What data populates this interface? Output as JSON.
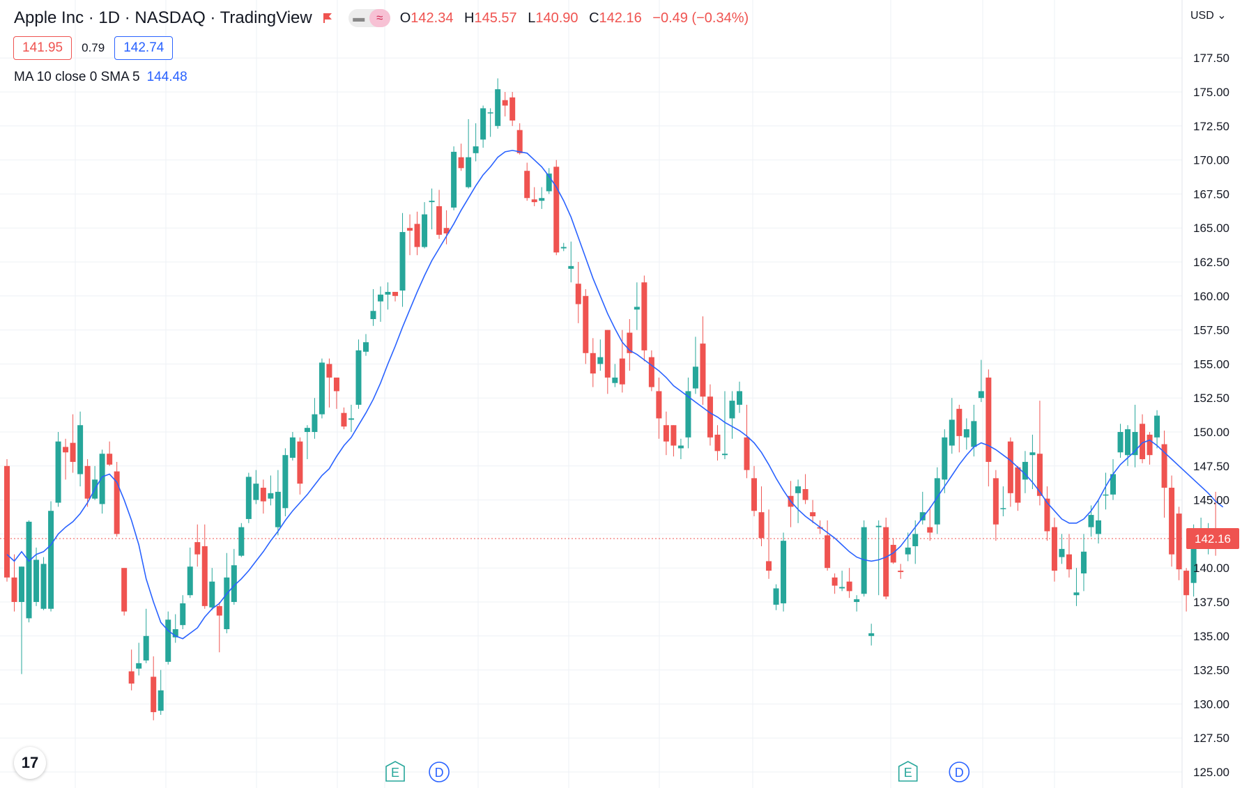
{
  "header": {
    "title": "Apple Inc · 1D · NASDAQ · TradingView",
    "ohlc": [
      {
        "label": "O",
        "value": "142.34"
      },
      {
        "label": "H",
        "value": "145.57"
      },
      {
        "label": "L",
        "value": "140.90"
      },
      {
        "label": "C",
        "value": "142.16"
      }
    ],
    "change": "−0.49 (−0.34%)",
    "bid": "141.95",
    "spread": "0.79",
    "ask": "142.74",
    "indicator_name": "MA 10 close 0 SMA 5",
    "indicator_value": "144.48",
    "currency": "USD",
    "logo_text": "17"
  },
  "colors": {
    "up": "#26a69a",
    "down": "#ef5350",
    "ma": "#2962ff",
    "grid": "#eef1f5",
    "axis_text": "#131722"
  },
  "events": [
    {
      "type": "E",
      "color": "#26a69a",
      "index": 53
    },
    {
      "type": "D",
      "color": "#2962ff",
      "index": 59
    },
    {
      "type": "E",
      "color": "#26a69a",
      "index": 123
    },
    {
      "type": "D",
      "color": "#2962ff",
      "index": 130
    }
  ],
  "chart_data": {
    "type": "candlestick",
    "symbol": "Apple Inc",
    "interval": "1D",
    "exchange": "NASDAQ",
    "ylim": [
      124.5,
      179.5
    ],
    "y_ticks": [
      "125.00",
      "127.50",
      "130.00",
      "132.50",
      "135.00",
      "137.50",
      "140.00",
      "142.50",
      "145.00",
      "147.50",
      "150.00",
      "152.50",
      "155.00",
      "157.50",
      "160.00",
      "162.50",
      "165.00",
      "167.50",
      "170.00",
      "172.50",
      "175.00",
      "177.50"
    ],
    "last_price": "142.16",
    "ma_period": 10,
    "candles": [
      [
        147.5,
        139.3,
        148.0,
        139.0
      ],
      [
        139.3,
        137.5,
        141.0,
        136.8
      ],
      [
        137.5,
        140.1,
        140.1,
        132.2
      ],
      [
        136.3,
        143.4,
        143.5,
        136.0
      ],
      [
        137.5,
        140.6,
        141.5,
        137.2
      ],
      [
        137.0,
        140.3,
        140.8,
        136.9
      ],
      [
        137.0,
        144.2,
        144.9,
        136.8
      ],
      [
        144.8,
        149.3,
        150.0,
        144.5
      ],
      [
        148.9,
        148.5,
        149.5,
        146.5
      ],
      [
        149.2,
        147.8,
        151.3,
        147.0
      ],
      [
        146.9,
        150.5,
        151.5,
        146.0
      ],
      [
        147.5,
        145.1,
        148.0,
        144.5
      ],
      [
        145.1,
        146.5,
        147.5,
        145.0
      ],
      [
        144.7,
        148.4,
        148.7,
        144.0
      ],
      [
        148.4,
        147.6,
        149.3,
        147.5
      ],
      [
        147.1,
        142.5,
        147.8,
        142.3
      ],
      [
        140.0,
        136.8,
        140.0,
        136.5
      ],
      [
        132.4,
        131.5,
        134.0,
        131.0
      ],
      [
        132.6,
        133.0,
        134.5,
        132.1
      ],
      [
        133.2,
        135.0,
        137.0,
        133.0
      ],
      [
        132.0,
        129.4,
        133.5,
        128.8
      ],
      [
        129.5,
        131.0,
        132.5,
        129.2
      ],
      [
        133.1,
        136.2,
        136.8,
        132.9
      ],
      [
        134.9,
        135.5,
        136.6,
        134.5
      ],
      [
        135.8,
        137.4,
        138.0,
        135.5
      ],
      [
        138.0,
        140.1,
        141.5,
        137.8
      ],
      [
        141.9,
        141.0,
        143.2,
        140.1
      ],
      [
        141.6,
        137.2,
        143.2,
        137.0
      ],
      [
        137.1,
        139.0,
        140.0,
        136.9
      ],
      [
        137.2,
        136.5,
        137.5,
        133.8
      ],
      [
        135.5,
        139.3,
        141.1,
        135.2
      ],
      [
        137.5,
        140.2,
        141.4,
        137.3
      ],
      [
        140.9,
        143.0,
        143.3,
        140.8
      ],
      [
        143.6,
        146.7,
        147.0,
        143.3
      ],
      [
        145.0,
        146.2,
        147.2,
        144.7
      ],
      [
        145.9,
        144.9,
        146.5,
        144.0
      ],
      [
        145.1,
        145.5,
        146.8,
        144.6
      ],
      [
        143.0,
        145.6,
        147.2,
        142.4
      ],
      [
        144.4,
        148.3,
        148.8,
        143.8
      ],
      [
        148.1,
        149.6,
        150.0,
        147.9
      ],
      [
        149.3,
        146.2,
        149.6,
        145.4
      ],
      [
        150.0,
        150.3,
        150.5,
        148.0
      ],
      [
        150.0,
        151.3,
        152.5,
        149.5
      ],
      [
        151.3,
        155.1,
        155.4,
        151.0
      ],
      [
        155.0,
        154.0,
        155.4,
        151.8
      ],
      [
        154.0,
        153.0,
        153.8,
        151.7
      ],
      [
        151.4,
        150.4,
        151.8,
        150.2
      ],
      [
        150.9,
        151.0,
        152.0,
        150.0
      ],
      [
        152.0,
        156.0,
        156.8,
        151.7
      ],
      [
        155.9,
        156.6,
        157.2,
        155.6
      ],
      [
        158.3,
        158.9,
        160.5,
        157.8
      ],
      [
        159.6,
        160.1,
        160.7,
        158.1
      ],
      [
        160.1,
        160.3,
        161.0,
        159.0
      ],
      [
        160.3,
        160.0,
        159.6,
        160.3
      ],
      [
        160.4,
        164.7,
        166.1,
        159.2
      ],
      [
        165.0,
        164.8,
        166.0,
        163.0
      ],
      [
        165.3,
        163.6,
        166.2,
        163.0
      ],
      [
        163.6,
        166.0,
        166.9,
        163.5
      ],
      [
        166.9,
        167.0,
        167.9,
        164.9
      ],
      [
        166.6,
        164.5,
        167.8,
        164.2
      ],
      [
        165.0,
        164.6,
        166.3,
        163.8
      ],
      [
        166.5,
        170.6,
        171.0,
        166.3
      ],
      [
        170.2,
        169.4,
        171.2,
        169.2
      ],
      [
        168.0,
        170.2,
        173.0,
        167.9
      ],
      [
        170.5,
        171.0,
        172.7,
        169.9
      ],
      [
        171.5,
        173.8,
        174.0,
        170.9
      ],
      [
        173.5,
        173.5,
        173.8,
        171.7
      ],
      [
        172.5,
        175.2,
        176.0,
        172.3
      ],
      [
        174.4,
        174.0,
        175.0,
        173.2
      ],
      [
        174.6,
        172.9,
        175.0,
        172.5
      ],
      [
        172.2,
        170.5,
        172.7,
        170.4
      ],
      [
        169.2,
        167.2,
        169.8,
        167.0
      ],
      [
        167.1,
        166.9,
        168.0,
        166.6
      ],
      [
        167.0,
        167.2,
        168.0,
        166.4
      ],
      [
        167.7,
        169.0,
        169.4,
        167.5
      ],
      [
        169.5,
        163.2,
        170.0,
        163.0
      ],
      [
        163.5,
        163.6,
        163.9,
        163.3
      ],
      [
        162.0,
        162.2,
        164.0,
        161.0
      ],
      [
        160.9,
        159.4,
        162.5,
        158.0
      ],
      [
        160.0,
        155.8,
        160.5,
        155.0
      ],
      [
        155.8,
        154.3,
        156.9,
        153.3
      ],
      [
        155.0,
        155.5,
        156.8,
        154.5
      ],
      [
        157.5,
        154.0,
        157.5,
        152.8
      ],
      [
        153.6,
        154.0,
        155.0,
        153.3
      ],
      [
        155.4,
        153.5,
        157.5,
        152.9
      ],
      [
        157.3,
        155.8,
        158.3,
        154.5
      ],
      [
        159.0,
        159.2,
        161.0,
        157.5
      ],
      [
        161.0,
        156.0,
        161.5,
        155.2
      ],
      [
        155.5,
        153.3,
        156.0,
        153.0
      ],
      [
        153.0,
        151.0,
        154.0,
        149.5
      ],
      [
        150.5,
        149.3,
        151.5,
        148.3
      ],
      [
        150.5,
        149.0,
        150.5,
        148.2
      ],
      [
        148.8,
        149.0,
        149.5,
        148.0
      ],
      [
        149.6,
        153.0,
        154.0,
        148.8
      ],
      [
        153.2,
        154.8,
        157.0,
        152.8
      ],
      [
        156.5,
        152.6,
        158.5,
        152.0
      ],
      [
        152.6,
        149.6,
        153.5,
        149.0
      ],
      [
        149.8,
        148.6,
        150.5,
        147.9
      ],
      [
        148.3,
        148.4,
        153.0,
        148.0
      ],
      [
        151.0,
        152.3,
        153.0,
        149.5
      ],
      [
        152.0,
        153.0,
        153.7,
        151.4
      ],
      [
        149.6,
        147.2,
        152.0,
        146.6
      ],
      [
        146.6,
        144.2,
        147.5,
        143.8
      ],
      [
        144.1,
        142.2,
        146.0,
        141.6
      ],
      [
        140.5,
        139.8,
        144.3,
        139.2
      ],
      [
        137.3,
        138.5,
        138.8,
        136.9
      ],
      [
        137.4,
        142.0,
        142.6,
        136.8
      ],
      [
        145.3,
        144.5,
        146.4,
        143.0
      ],
      [
        145.5,
        146.0,
        146.5,
        143.3
      ],
      [
        145.8,
        145.0,
        146.9,
        144.7
      ],
      [
        144.1,
        143.8,
        145.0,
        143.3
      ],
      [
        143.0,
        142.9,
        143.5,
        142.5
      ],
      [
        142.4,
        140.0,
        143.5,
        139.8
      ],
      [
        139.3,
        138.7,
        139.6,
        138.1
      ],
      [
        138.5,
        138.6,
        139.8,
        138.3
      ],
      [
        139.0,
        138.3,
        140.0,
        137.8
      ],
      [
        137.5,
        137.7,
        138.0,
        136.8
      ],
      [
        138.1,
        143.0,
        143.5,
        137.9
      ],
      [
        135.0,
        135.2,
        135.9,
        134.3
      ],
      [
        143.0,
        143.1,
        143.5,
        138.0
      ],
      [
        143.0,
        137.9,
        143.7,
        137.7
      ],
      [
        141.7,
        140.4,
        142.2,
        140.3
      ],
      [
        139.8,
        139.7,
        140.3,
        139.2
      ],
      [
        141.0,
        141.5,
        142.6,
        140.5
      ],
      [
        141.6,
        142.5,
        143.5,
        140.3
      ],
      [
        143.5,
        144.1,
        145.6,
        143.2
      ],
      [
        143.0,
        142.6,
        144.5,
        142.0
      ],
      [
        143.2,
        146.6,
        147.4,
        142.5
      ],
      [
        146.5,
        149.6,
        150.2,
        145.5
      ],
      [
        149.0,
        150.9,
        152.5,
        148.4
      ],
      [
        151.7,
        149.7,
        152.0,
        148.5
      ],
      [
        149.6,
        150.2,
        151.0,
        148.7
      ],
      [
        148.9,
        150.8,
        152.0,
        148.2
      ],
      [
        152.5,
        153.0,
        155.3,
        152.2
      ],
      [
        154.0,
        147.8,
        154.6,
        146.0
      ],
      [
        146.6,
        143.2,
        147.2,
        142.0
      ],
      [
        144.4,
        144.4,
        146.0,
        143.8
      ],
      [
        149.3,
        145.5,
        149.6,
        144.5
      ],
      [
        147.4,
        144.8,
        147.5,
        144.2
      ],
      [
        146.5,
        147.8,
        148.6,
        145.5
      ],
      [
        148.3,
        148.5,
        149.8,
        145.8
      ],
      [
        148.4,
        145.3,
        152.3,
        144.6
      ],
      [
        145.1,
        142.7,
        146.0,
        142.0
      ],
      [
        143.0,
        139.8,
        143.7,
        139.0
      ],
      [
        140.8,
        141.4,
        142.5,
        140.3
      ],
      [
        141.0,
        139.9,
        142.5,
        139.3
      ],
      [
        138.0,
        138.2,
        140.0,
        137.2
      ],
      [
        139.6,
        141.2,
        142.5,
        138.3
      ],
      [
        143.0,
        143.9,
        144.6,
        142.3
      ],
      [
        142.5,
        143.5,
        145.0,
        141.8
      ],
      [
        145.4,
        145.4,
        147.0,
        144.3
      ],
      [
        145.4,
        146.9,
        148.0,
        145.0
      ],
      [
        148.5,
        150.0,
        150.6,
        148.1
      ],
      [
        148.3,
        150.2,
        150.5,
        147.5
      ],
      [
        148.3,
        150.0,
        152.0,
        147.4
      ],
      [
        150.6,
        148.0,
        151.3,
        147.7
      ],
      [
        149.8,
        148.3,
        150.0,
        147.6
      ],
      [
        149.6,
        151.2,
        151.6,
        148.8
      ],
      [
        149.1,
        145.9,
        150.1,
        143.7
      ],
      [
        145.9,
        141.0,
        146.8,
        140.1
      ],
      [
        144.0,
        139.9,
        144.5,
        139.1
      ],
      [
        139.8,
        138.0,
        140.0,
        136.8
      ],
      [
        138.9,
        142.1,
        143.2,
        137.9
      ],
      [
        142.2,
        142.8,
        143.7,
        141.9
      ],
      [
        142.6,
        142.7,
        143.3,
        141.0
      ],
      [
        142.3,
        142.2,
        145.6,
        140.9
      ]
    ],
    "ma_line": {
      "start": 0,
      "values": [
        141.0,
        140.5,
        141.2,
        140.5,
        141.0,
        141.2,
        141.7,
        142.5,
        143.0,
        143.4,
        144.0,
        144.8,
        145.8,
        146.7,
        146.9,
        146.3,
        145.0,
        143.5,
        141.7,
        139.2,
        137.5,
        136.0,
        135.4,
        135.0,
        134.8,
        135.2,
        135.6,
        136.4,
        137.0,
        137.4,
        138.1,
        138.7,
        139.2,
        139.8,
        140.5,
        141.2,
        142.0,
        142.7,
        143.5,
        144.2,
        144.8,
        145.4,
        146.1,
        146.8,
        147.3,
        148.2,
        149.0,
        149.6,
        150.5,
        151.4,
        152.4,
        153.6,
        155.0,
        156.3,
        157.7,
        159.0,
        160.3,
        161.5,
        162.6,
        163.5,
        164.4,
        165.3,
        166.3,
        167.2,
        168.1,
        168.9,
        169.5,
        170.2,
        170.6,
        170.7,
        170.6,
        170.5,
        170.0,
        169.5,
        168.8,
        168.0,
        167.0,
        165.8,
        164.3,
        162.8,
        161.3,
        160.0,
        158.7,
        157.6,
        156.6,
        156.0,
        155.7,
        155.3,
        154.9,
        154.5,
        154.0,
        153.4,
        153.0,
        152.6,
        152.2,
        151.8,
        151.4,
        151.1,
        150.7,
        150.4,
        150.1,
        149.7,
        149.2,
        148.5,
        147.6,
        146.6,
        145.7,
        144.9,
        144.3,
        143.8,
        143.4,
        143.0,
        142.6,
        142.2,
        141.7,
        141.2,
        140.8,
        140.6,
        140.5,
        140.6,
        140.8,
        141.1,
        141.6,
        142.3,
        143.0,
        143.7,
        144.4,
        145.2,
        146.0,
        146.8,
        147.6,
        148.3,
        148.9,
        149.2,
        149.0,
        148.7,
        148.3,
        147.9,
        147.4,
        146.9,
        146.3,
        145.6,
        144.8,
        144.2,
        143.6,
        143.3,
        143.3,
        143.6,
        144.2,
        145.0,
        146.0,
        146.9,
        147.6,
        148.1,
        148.6,
        149.2,
        149.4,
        149.0,
        148.5,
        148.0,
        147.5,
        147.0,
        146.5,
        146.0,
        145.5,
        144.9,
        144.48
      ]
    }
  }
}
